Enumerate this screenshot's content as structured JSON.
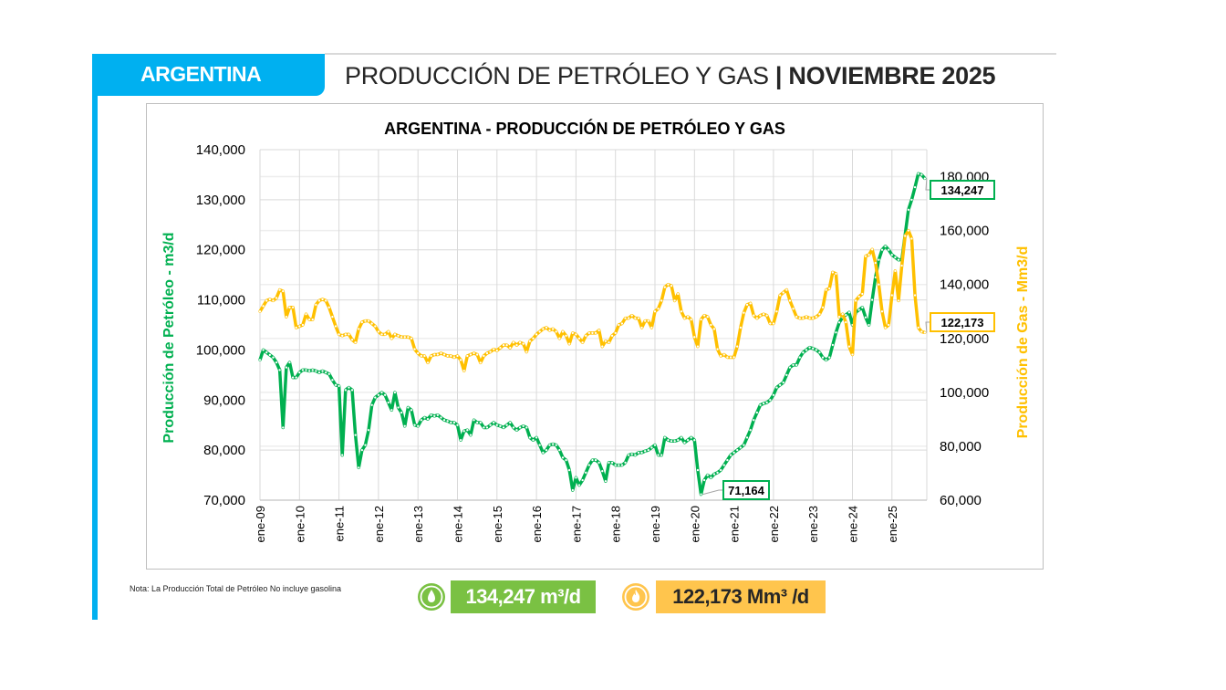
{
  "header": {
    "country_tab": "ARGENTINA",
    "title_main": "PRODUCCIÓN DE PETRÓLEO Y GAS",
    "title_sep": "|",
    "title_period": "NOVIEMBRE 2025"
  },
  "note": "Nota: La Producción Total de Petróleo No incluye gasolina",
  "badges": {
    "oil": {
      "value": "134,247 m³/d",
      "icon": "oil-drop-icon",
      "color": "#7ac143"
    },
    "gas": {
      "value": "122,173 Mm³ /d",
      "icon": "flame-icon",
      "color": "#ffc54d"
    }
  },
  "colors": {
    "oil": "#00b050",
    "gas": "#ffc000",
    "accent": "#00b0f0"
  },
  "chart_data": {
    "type": "line",
    "title": "ARGENTINA - PRODUCCIÓN DE PETRÓLEO Y GAS",
    "ylabel": "Producción de Petróleo - m3/d",
    "y2label": "Producción de Gas - Mm3/d",
    "ylim": [
      70000,
      140000
    ],
    "y2lim": [
      60000,
      190000
    ],
    "yticks": [
      "70,000",
      "80,000",
      "90,000",
      "100,000",
      "110,000",
      "120,000",
      "130,000",
      "140,000"
    ],
    "y2ticks": [
      "60,000",
      "80,000",
      "100,000",
      "120,000",
      "140,000",
      "160,000",
      "180,000"
    ],
    "xticks": [
      "ene-09",
      "ene-10",
      "ene-11",
      "ene-12",
      "ene-13",
      "ene-14",
      "ene-15",
      "ene-16",
      "ene-17",
      "ene-18",
      "ene-19",
      "ene-20",
      "ene-21",
      "ene-22",
      "ene-23",
      "ene-24",
      "ene-25"
    ],
    "x_start": "2009-01",
    "x_frequency": "monthly",
    "x_end": "2025-11",
    "grid": true,
    "series": [
      {
        "axis": "left",
        "color": "#00b050",
        "values": [
          98000,
          100000,
          99500,
          99000,
          98500,
          97500,
          96000,
          84500,
          96500,
          97500,
          94500,
          94500,
          95500,
          96000,
          96000,
          95800,
          96000,
          95800,
          95500,
          95800,
          95500,
          95200,
          94000,
          93000,
          92800,
          79000,
          92000,
          92500,
          92000,
          83000,
          76500,
          80000,
          81000,
          84000,
          89000,
          90500,
          91000,
          91500,
          91000,
          89500,
          88000,
          91500,
          88500,
          87500,
          84800,
          88500,
          88000,
          85000,
          84800,
          86000,
          86500,
          86200,
          87000,
          86800,
          87000,
          86500,
          86000,
          85800,
          85500,
          85500,
          85000,
          82000,
          83800,
          84000,
          83000,
          86000,
          85500,
          85500,
          84500,
          84500,
          85000,
          85500,
          85000,
          84800,
          84500,
          85000,
          85500,
          84500,
          84000,
          84500,
          84800,
          84500,
          82500,
          82000,
          82500,
          81000,
          79500,
          80000,
          81000,
          81200,
          81000,
          80000,
          78500,
          78000,
          76000,
          72000,
          74500,
          73000,
          74000,
          75500,
          77000,
          78000,
          78000,
          77500,
          75800,
          73800,
          77500,
          77500,
          77000,
          77000,
          77000,
          77500,
          79000,
          79200,
          79000,
          79500,
          79500,
          79800,
          80000,
          80500,
          81000,
          79000,
          79000,
          82500,
          82000,
          81800,
          81800,
          82000,
          82500,
          81500,
          82000,
          82500,
          82000,
          76000,
          71164,
          74000,
          75000,
          74500,
          75200,
          75500,
          76000,
          77000,
          78000,
          79000,
          79500,
          80000,
          80500,
          81000,
          82500,
          84000,
          86000,
          87500,
          89000,
          89300,
          89500,
          90000,
          91000,
          92500,
          93000,
          93500,
          95000,
          96500,
          97000,
          97000,
          98500,
          99500,
          100000,
          100500,
          100300,
          100000,
          99500,
          98500,
          98000,
          98500,
          101000,
          103500,
          105500,
          106500,
          107000,
          107500,
          105000,
          107500,
          108000,
          108500,
          106500,
          105000,
          110000,
          114500,
          118000,
          120000,
          120700,
          120000,
          119000,
          118500,
          118000,
          118000,
          123000,
          128000,
          130000,
          132500,
          135200,
          135000,
          134247
        ]
      },
      {
        "axis": "right",
        "color": "#ffc000",
        "values": [
          130000,
          132000,
          134000,
          134500,
          134000,
          135000,
          138000,
          137500,
          128000,
          131500,
          131500,
          124000,
          124500,
          125000,
          129000,
          127000,
          127000,
          132500,
          134000,
          134500,
          134000,
          131500,
          128000,
          124500,
          121500,
          121000,
          121500,
          121500,
          119500,
          118500,
          123500,
          126000,
          126500,
          126500,
          125500,
          124500,
          122500,
          121500,
          121500,
          122500,
          120000,
          121500,
          121000,
          120500,
          120500,
          120500,
          120000,
          116000,
          114500,
          113500,
          113500,
          111000,
          113500,
          114000,
          114000,
          114500,
          114000,
          113500,
          113500,
          113000,
          113500,
          112000,
          108000,
          113500,
          114000,
          114500,
          114000,
          111000,
          113500,
          114500,
          115000,
          116000,
          115500,
          116500,
          117500,
          117500,
          116500,
          118500,
          117500,
          118500,
          118000,
          115000,
          119000,
          120000,
          121500,
          122500,
          123500,
          124000,
          123000,
          123500,
          122500,
          120000,
          122500,
          121000,
          118000,
          122000,
          121500,
          120000,
          118500,
          121000,
          122000,
          122000,
          122000,
          123000,
          117000,
          119000,
          118500,
          121000,
          122000,
          125000,
          125500,
          127500,
          127500,
          128500,
          127500,
          127500,
          124000,
          126500,
          126500,
          124000,
          130000,
          131000,
          134000,
          139000,
          140000,
          139500,
          134000,
          136500,
          130000,
          127500,
          128000,
          127000,
          120500,
          117000,
          127000,
          128500,
          128000,
          125000,
          123500,
          116000,
          113500,
          114000,
          113000,
          113000,
          113000,
          117000,
          124000,
          129500,
          132500,
          133000,
          128500,
          127500,
          128500,
          129000,
          128500,
          125500,
          125500,
          130000,
          136000,
          137000,
          138000,
          134000,
          131000,
          128000,
          127500,
          127500,
          128000,
          127500,
          127500,
          128000,
          129000,
          131500,
          138000,
          138500,
          144500,
          144000,
          128000,
          129000,
          126000,
          117000,
          114000,
          134000,
          135500,
          136500,
          150500,
          151000,
          153000,
          148000,
          140000,
          130000,
          124000,
          125000,
          136000,
          145000,
          134000,
          147000,
          158000,
          160000,
          157000,
          136000,
          124000,
          122500,
          122173
        ]
      }
    ],
    "annotations": [
      {
        "series": 0,
        "date": "2025-11",
        "label": "134,247"
      },
      {
        "series": 1,
        "date": "2025-11",
        "label": "122,173"
      },
      {
        "series": 0,
        "date": "2020-03",
        "label": "71,164"
      }
    ]
  }
}
